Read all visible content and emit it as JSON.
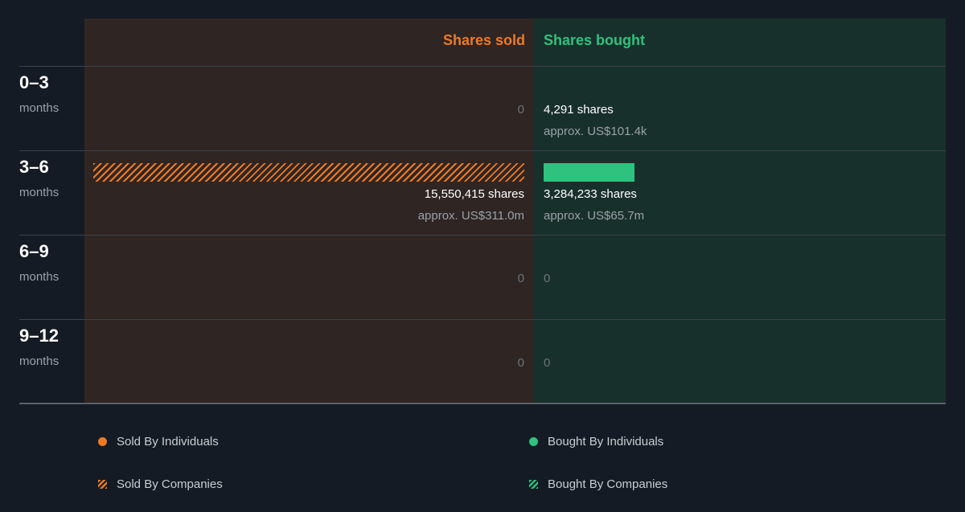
{
  "chart_data": {
    "type": "bar",
    "orientation": "horizontal-diverging",
    "headers": {
      "sold": "Shares sold",
      "bought": "Shares bought"
    },
    "periods": [
      {
        "label": "0–3",
        "unit": "months",
        "sold": {
          "shares": 0,
          "text": "0",
          "approx": ""
        },
        "bought": {
          "shares": 4291,
          "text": "4,291 shares",
          "approx": "approx. US$101.4k"
        }
      },
      {
        "label": "3–6",
        "unit": "months",
        "sold": {
          "shares": 15550415,
          "text": "15,550,415 shares",
          "approx": "approx. US$311.0m"
        },
        "bought": {
          "shares": 3284233,
          "text": "3,284,233 shares",
          "approx": "approx. US$65.7m"
        }
      },
      {
        "label": "6–9",
        "unit": "months",
        "sold": {
          "shares": 0,
          "text": "0",
          "approx": ""
        },
        "bought": {
          "shares": 0,
          "text": "0",
          "approx": ""
        }
      },
      {
        "label": "9–12",
        "unit": "months",
        "sold": {
          "shares": 0,
          "text": "0",
          "approx": ""
        },
        "bought": {
          "shares": 0,
          "text": "0",
          "approx": ""
        }
      }
    ],
    "series_style": {
      "sold_individuals": "solid",
      "sold_companies": "hatched",
      "bought_individuals": "solid",
      "bought_companies": "hatched"
    },
    "bar_series": [
      {
        "period": 1,
        "side": "sold",
        "series": "sold_companies",
        "shares": 15550415
      },
      {
        "period": 1,
        "side": "bought",
        "series": "bought_individuals",
        "shares": 3284233
      }
    ],
    "legend": {
      "placement": "bottom",
      "items": [
        {
          "key": "sold_individuals",
          "label": "Sold By Individuals",
          "style": "dot",
          "color": "#ee7a24"
        },
        {
          "key": "bought_individuals",
          "label": "Bought By Individuals",
          "style": "dot",
          "color": "#2ec27e"
        },
        {
          "key": "sold_companies",
          "label": "Sold By Companies",
          "style": "hatch",
          "color": "#ee7a24"
        },
        {
          "key": "bought_companies",
          "label": "Bought By Companies",
          "style": "hatch",
          "color": "#2ec27e"
        }
      ]
    }
  },
  "colors": {
    "sold": "#ee7a24",
    "bought": "#2ec27e",
    "sold_panel": "#2f2523",
    "bought_panel": "#18302b",
    "background": "#151b24"
  }
}
